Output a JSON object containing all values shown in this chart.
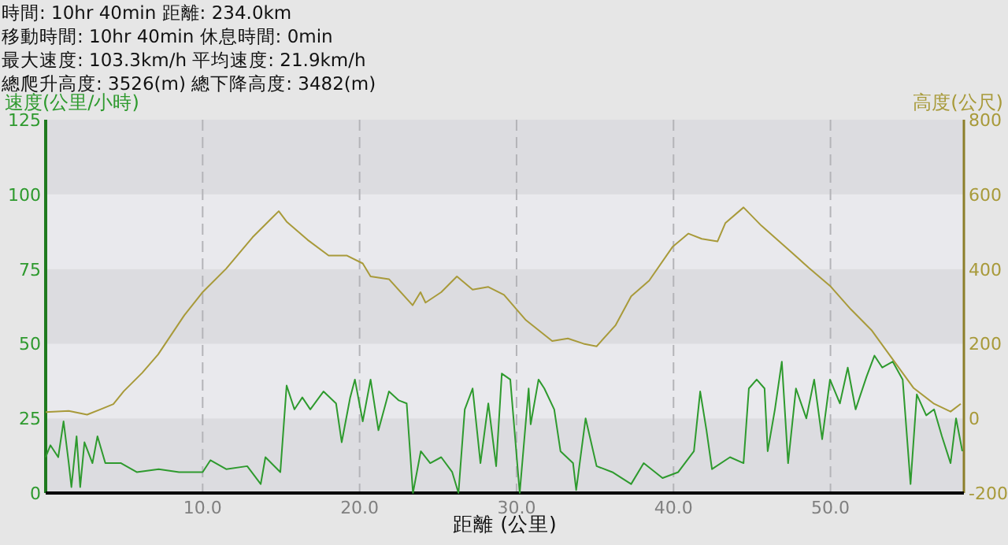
{
  "chart_data": {
    "type": "line",
    "annotations": [
      "時間: 10hr 40min  距離: 234.0km",
      "移動時間: 10hr 40min  休息時間: 0min",
      "最大速度: 103.3km/h  平均速度: 21.9km/h",
      "總爬升高度: 3526(m)  總下降高度: 3482(m)"
    ],
    "xlabel": "距離 (公里)",
    "ylabel": "速度(公里/小時)",
    "y2label": "高度(公尺)",
    "xlim": [
      0,
      58.5
    ],
    "xticks": [
      {
        "value": 10,
        "label": "10.0"
      },
      {
        "value": 20,
        "label": "20.0"
      },
      {
        "value": 30,
        "label": "30.0"
      },
      {
        "value": 40,
        "label": "40.0"
      },
      {
        "value": 50,
        "label": "50.0"
      }
    ],
    "ylim": [
      0,
      125
    ],
    "yticks": [
      0,
      25,
      50,
      75,
      100,
      125
    ],
    "y2lim": [
      -200,
      800
    ],
    "y2ticks": [
      -200,
      0,
      200,
      400,
      600,
      800
    ],
    "grid": true,
    "marker": "none",
    "line_style": "solid",
    "series": [
      {
        "color": "#2e9a2e",
        "x": [
          0,
          0.3,
          0.8,
          1.14,
          1.47,
          1.64,
          1.97,
          2.2,
          2.47,
          2.98,
          3.3,
          3.8,
          4.8,
          5.8,
          7.2,
          8.5,
          10,
          10.5,
          11.5,
          12.84,
          13.7,
          14,
          14.95,
          15.35,
          15.85,
          16.35,
          16.86,
          17.7,
          18.5,
          18.86,
          19.4,
          19.7,
          20.2,
          20.7,
          21.2,
          21.87,
          22.5,
          23,
          23.4,
          23.9,
          24.5,
          25.2,
          25.9,
          26.3,
          26.7,
          27.2,
          27.7,
          28.2,
          28.7,
          29.06,
          29.6,
          30.2,
          30.77,
          30.9,
          31.4,
          31.77,
          32.4,
          32.8,
          33.6,
          33.8,
          34.4,
          35.1,
          36.1,
          37.3,
          38.1,
          39.3,
          40.3,
          41.3,
          41.7,
          42.1,
          42.45,
          43.6,
          44.46,
          44.8,
          45.3,
          45.8,
          46,
          46.46,
          46.9,
          47.3,
          47.8,
          48.46,
          48.96,
          49.47,
          49.97,
          50.6,
          51.1,
          51.6,
          52.3,
          52.8,
          53.3,
          53.97,
          54.6,
          55.1,
          55.5,
          56.1,
          56.6,
          57.1,
          57.65,
          58,
          58.4
        ],
        "values": [
          12,
          16,
          12,
          24,
          10,
          2,
          19,
          2,
          17,
          10,
          19,
          10,
          10,
          7,
          8,
          7,
          7,
          11,
          8,
          9,
          3,
          12,
          7,
          36,
          28,
          32,
          28,
          34,
          30,
          17,
          32,
          38,
          24,
          38,
          21,
          34,
          31,
          30,
          0,
          14,
          10,
          12,
          7,
          0,
          28,
          35,
          10,
          30,
          9,
          40,
          38,
          0,
          35,
          23,
          38,
          35,
          28,
          14,
          10,
          1,
          25,
          9,
          7,
          3,
          10,
          5,
          7,
          14,
          34,
          21,
          8,
          12,
          10,
          35,
          38,
          35,
          14,
          28,
          44,
          10,
          35,
          25,
          38,
          18,
          38,
          30,
          42,
          28,
          39,
          46,
          42,
          44,
          38,
          3,
          33,
          26,
          28,
          19,
          10,
          25,
          14
        ]
      },
      {
        "color": "#a89a3a",
        "axis": "y2",
        "x": [
          0,
          1.47,
          2.64,
          3.48,
          4.31,
          4.98,
          6.15,
          7.16,
          8.83,
          10,
          11.5,
          13.18,
          14.35,
          14.85,
          15.35,
          16.69,
          18.03,
          19.2,
          20.2,
          20.7,
          21.87,
          23.38,
          23.88,
          24.2,
          25.2,
          26.2,
          27.2,
          28.2,
          29.2,
          30.6,
          32.27,
          33.27,
          34.27,
          35.1,
          36.3,
          37.3,
          38.45,
          39.95,
          40.95,
          41.8,
          42.8,
          43.3,
          44.46,
          45.6,
          47.3,
          48.6,
          49.97,
          51.3,
          52.64,
          53.97,
          55.3,
          56.6,
          57.65,
          58.3
        ],
        "values": [
          17,
          20,
          10,
          24,
          38,
          73,
          122,
          171,
          276,
          338,
          401,
          485,
          534,
          555,
          527,
          478,
          436,
          436,
          415,
          380,
          373,
          303,
          338,
          310,
          338,
          380,
          345,
          352,
          331,
          263,
          207,
          214,
          200,
          193,
          249,
          327,
          369,
          460,
          495,
          481,
          474,
          523,
          565,
          516,
          453,
          404,
          355,
          292,
          235,
          158,
          81,
          39,
          18,
          39
        ]
      }
    ]
  }
}
